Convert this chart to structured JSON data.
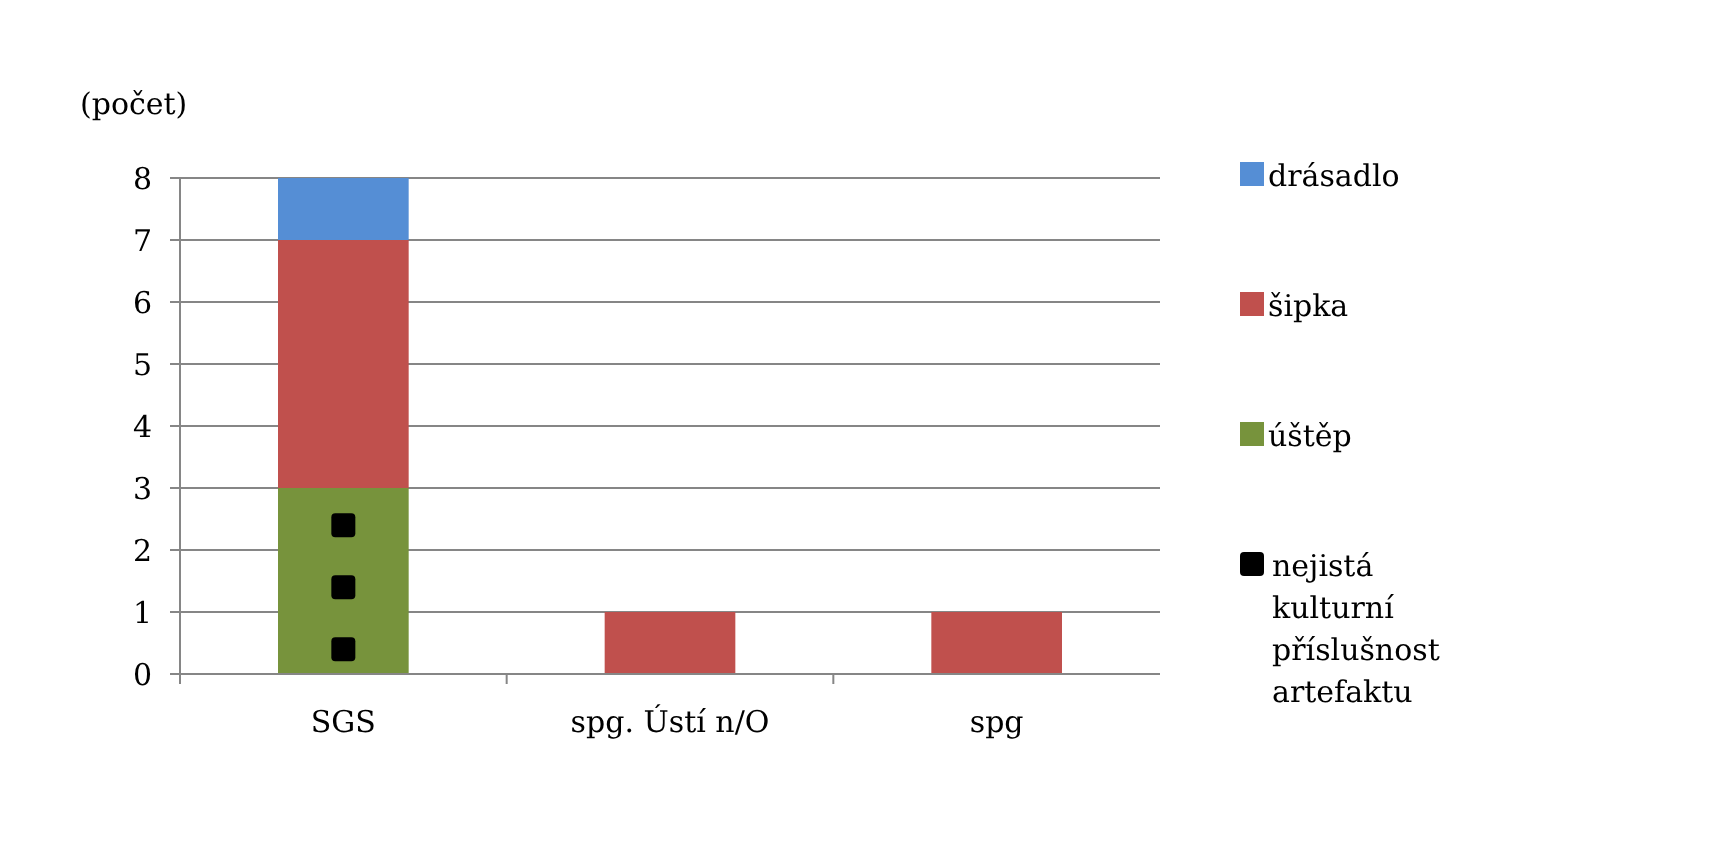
{
  "chart_data": {
    "type": "bar",
    "stacked": true,
    "ylabel": "(počet)",
    "categories": [
      "SGS",
      "spg. Ústí n/O",
      "spg"
    ],
    "series": [
      {
        "name": "úštěp",
        "color": "#77933c",
        "values": [
          3,
          0,
          0
        ]
      },
      {
        "name": "šipka",
        "color": "#c0504d",
        "values": [
          4,
          1,
          1
        ]
      },
      {
        "name": "drásadlo",
        "color": "#558ed5",
        "values": [
          1,
          0,
          0
        ]
      },
      {
        "name": "nejistá kulturní příslušnost artefaktu",
        "type": "scatter",
        "marker": "square",
        "color": "#000000",
        "x": [
          "SGS",
          "SGS",
          "SGS"
        ],
        "values": [
          0.4,
          1.4,
          2.4
        ]
      }
    ],
    "ylim": [
      0,
      8
    ],
    "yticks": [
      0,
      1,
      2,
      3,
      4,
      5,
      6,
      7,
      8
    ],
    "grid": "y",
    "legend": "right"
  }
}
